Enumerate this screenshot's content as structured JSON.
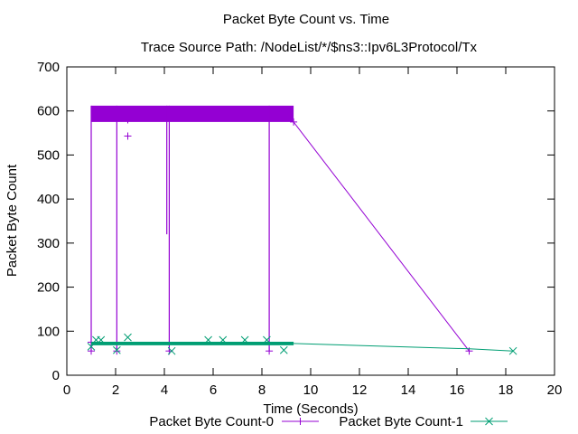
{
  "chart_data": {
    "type": "line",
    "title": "Packet Byte Count vs. Time",
    "subtitle": "Trace Source Path: /NodeList/*/$ns3::Ipv6L3Protocol/Tx",
    "xlabel": "Time (Seconds)",
    "ylabel": "Packet Byte Count",
    "xlim": [
      0,
      20
    ],
    "ylim": [
      0,
      700
    ],
    "x_ticks": [
      "0",
      "2",
      "4",
      "6",
      "8",
      "10",
      "12",
      "14",
      "16",
      "18",
      "20"
    ],
    "y_ticks": [
      "0",
      "100",
      "200",
      "300",
      "400",
      "500",
      "600",
      "700"
    ],
    "grid": false,
    "legend_position": "bottom",
    "series": [
      {
        "name": "Packet Byte Count-0",
        "color": "#9400D3",
        "marker": "plus",
        "band": {
          "x_start": 1.0,
          "x_end": 9.3,
          "y_low": 575,
          "y_high": 612
        },
        "spikes": [
          {
            "x": 1.0,
            "y_low": 55,
            "y_high": 612
          },
          {
            "x": 2.05,
            "y_low": 55,
            "y_high": 612
          },
          {
            "x": 4.1,
            "y_low": 320,
            "y_high": 612
          },
          {
            "x": 4.2,
            "y_low": 55,
            "y_high": 612
          },
          {
            "x": 8.3,
            "y_low": 55,
            "y_high": 612
          }
        ],
        "points": [
          {
            "x": 1.0,
            "y": 55
          },
          {
            "x": 1.0,
            "y": 75
          },
          {
            "x": 2.05,
            "y": 55
          },
          {
            "x": 2.5,
            "y": 543
          },
          {
            "x": 2.5,
            "y": 580
          },
          {
            "x": 4.2,
            "y": 55
          },
          {
            "x": 8.3,
            "y": 55
          },
          {
            "x": 9.3,
            "y": 575
          },
          {
            "x": 16.5,
            "y": 55
          }
        ],
        "tail": [
          {
            "x": 9.3,
            "y": 575
          },
          {
            "x": 16.5,
            "y": 55
          }
        ]
      },
      {
        "name": "Packet Byte Count-1",
        "color": "#009E73",
        "marker": "x",
        "band": {
          "x_start": 1.0,
          "x_end": 9.3,
          "y_low": 68,
          "y_high": 76
        },
        "spikes": [],
        "points": [
          {
            "x": 1.0,
            "y": 65
          },
          {
            "x": 1.2,
            "y": 80
          },
          {
            "x": 1.4,
            "y": 80
          },
          {
            "x": 2.05,
            "y": 57
          },
          {
            "x": 2.5,
            "y": 86
          },
          {
            "x": 4.3,
            "y": 55
          },
          {
            "x": 5.8,
            "y": 80
          },
          {
            "x": 6.4,
            "y": 80
          },
          {
            "x": 7.3,
            "y": 80
          },
          {
            "x": 8.2,
            "y": 80
          },
          {
            "x": 8.9,
            "y": 57
          },
          {
            "x": 18.3,
            "y": 55
          }
        ],
        "tail": [
          {
            "x": 9.3,
            "y": 72
          },
          {
            "x": 16.5,
            "y": 60
          },
          {
            "x": 18.3,
            "y": 55
          }
        ]
      }
    ]
  }
}
